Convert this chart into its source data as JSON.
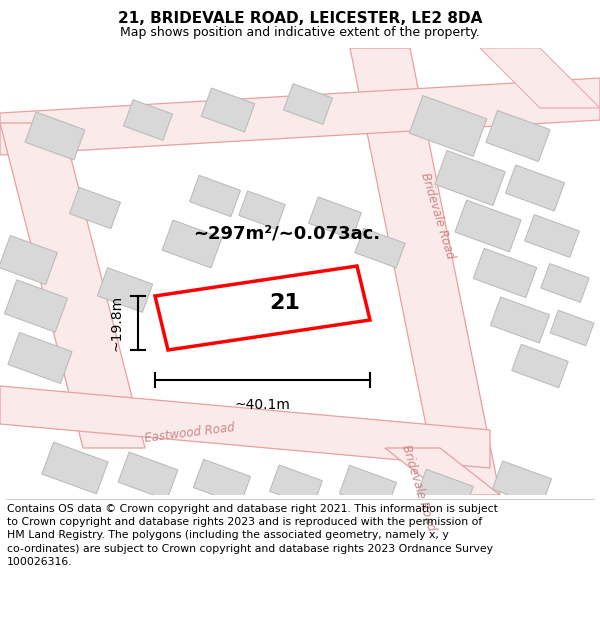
{
  "title": "21, BRIDEVALE ROAD, LEICESTER, LE2 8DA",
  "subtitle": "Map shows position and indicative extent of the property.",
  "footer_line1": "Contains OS data © Crown copyright and database right 2021. This information is subject",
  "footer_line2": "to Crown copyright and database rights 2023 and is reproduced with the permission of",
  "footer_line3": "HM Land Registry. The polygons (including the associated geometry, namely x, y",
  "footer_line4": "co-ordinates) are subject to Crown copyright and database rights 2023 Ordnance Survey",
  "footer_line5": "100026316.",
  "area_label": "~297m²/~0.073ac.",
  "width_label": "~40.1m",
  "height_label": "~19.8m",
  "property_number": "21",
  "map_bg": "#f5f5f5",
  "road_fill": "#faeaea",
  "road_edge": "#e8a0a0",
  "building_fill": "#d8d8d8",
  "building_edge": "#b8b8b8",
  "highlight_fill": "#ffffff",
  "highlight_edge": "#ff0000",
  "highlight_lw": 2.5,
  "road_label_color": "#cc8888",
  "title_fontsize": 11,
  "subtitle_fontsize": 9,
  "footer_fontsize": 7.8,
  "annot_fontsize": 10,
  "area_fontsize": 13,
  "propnum_fontsize": 16,
  "road_label_fontsize": 8.5
}
